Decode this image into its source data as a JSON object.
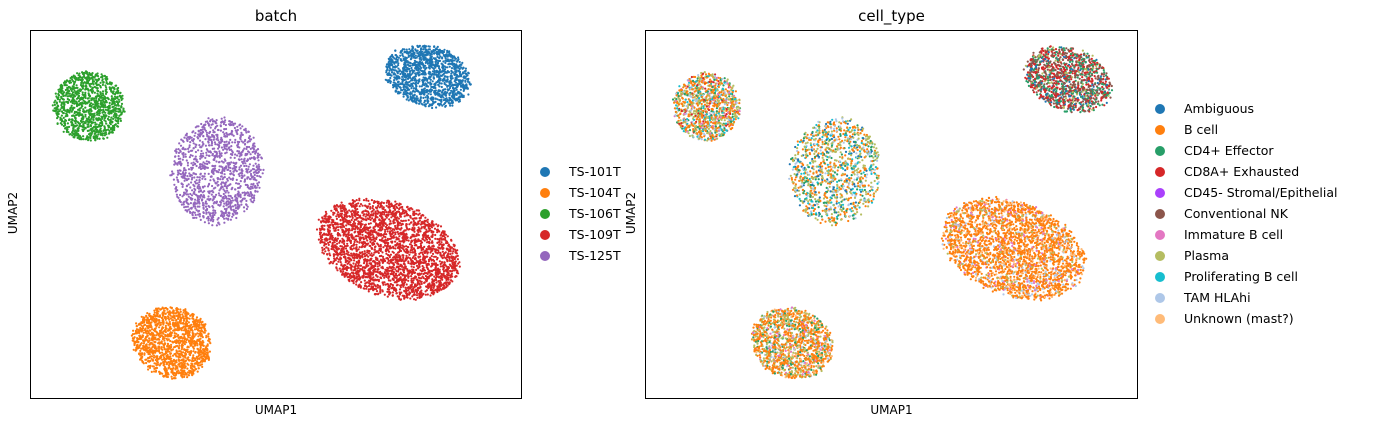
{
  "chart_data": [
    {
      "type": "scatter",
      "title": "batch",
      "xlabel": "UMAP1",
      "ylabel": "UMAP2",
      "ticks": "none",
      "grid": false,
      "legend_position": "right",
      "series": [
        {
          "name": "TS-101T",
          "color": "#1f77b4",
          "cluster": {
            "cx": 0.807,
            "cy": 0.878,
            "rx": 0.092,
            "ry": 0.085,
            "rot": 15,
            "count": 1300
          }
        },
        {
          "name": "TS-104T",
          "color": "#ff7f0e",
          "cluster": {
            "cx": 0.287,
            "cy": 0.156,
            "rx": 0.085,
            "ry": 0.098,
            "rot": 20,
            "count": 1400
          }
        },
        {
          "name": "TS-106T",
          "color": "#2ca02c",
          "cluster": {
            "cx": 0.117,
            "cy": 0.795,
            "rx": 0.075,
            "ry": 0.098,
            "rot": 15,
            "count": 1100
          }
        },
        {
          "name": "TS-109T",
          "color": "#d62728",
          "cluster": {
            "cx": 0.727,
            "cy": 0.41,
            "rx": 0.155,
            "ry": 0.13,
            "rot": 20,
            "count": 2800
          }
        },
        {
          "name": "TS-125T",
          "color": "#9467bd",
          "cluster": {
            "cx": 0.378,
            "cy": 0.62,
            "rx": 0.095,
            "ry": 0.15,
            "rot": 8,
            "count": 1200
          }
        }
      ]
    },
    {
      "type": "scatter",
      "title": "cell_type",
      "xlabel": "UMAP1",
      "ylabel": "UMAP2",
      "ticks": "none",
      "grid": false,
      "legend_position": "right",
      "series": [
        {
          "name": "Ambiguous",
          "color": "#1f77b4"
        },
        {
          "name": "B cell",
          "color": "#ff7f0e"
        },
        {
          "name": "CD4+ Effector",
          "color": "#279e68"
        },
        {
          "name": "CD8A+ Exhausted",
          "color": "#d62728"
        },
        {
          "name": "CD45- Stromal/Epithelial",
          "color": "#aa40fc"
        },
        {
          "name": "Conventional NK",
          "color": "#8c564b"
        },
        {
          "name": "Immature B cell",
          "color": "#e377c2"
        },
        {
          "name": "Plasma",
          "color": "#b5bd61"
        },
        {
          "name": "Proliferating B cell",
          "color": "#17becf"
        },
        {
          "name": "TAM HLAhi",
          "color": "#aec7e8"
        },
        {
          "name": "Unknown (mast?)",
          "color": "#ffbb78"
        }
      ],
      "clusters": [
        {
          "cx": 0.857,
          "cy": 0.869,
          "rx": 0.095,
          "ry": 0.087,
          "rot": 20,
          "count": 1300,
          "mix": [
            [
              "Conventional NK",
              0.3
            ],
            [
              "CD8A+ Exhausted",
              0.3
            ],
            [
              "CD4+ Effector",
              0.22
            ],
            [
              "Ambiguous",
              0.1
            ],
            [
              "Plasma",
              0.08
            ]
          ]
        },
        {
          "cx": 0.296,
          "cy": 0.154,
          "rx": 0.088,
          "ry": 0.098,
          "rot": 20,
          "count": 1400,
          "mix": [
            [
              "B cell",
              0.5
            ],
            [
              "Plasma",
              0.25
            ],
            [
              "CD4+ Effector",
              0.1
            ],
            [
              "Immature B cell",
              0.05
            ],
            [
              "TAM HLAhi",
              0.05
            ],
            [
              "Unknown (mast?)",
              0.05
            ]
          ]
        },
        {
          "cx": 0.123,
          "cy": 0.795,
          "rx": 0.07,
          "ry": 0.095,
          "rot": 15,
          "count": 1100,
          "mix": [
            [
              "B cell",
              0.35
            ],
            [
              "Plasma",
              0.25
            ],
            [
              "CD4+ Effector",
              0.1
            ],
            [
              "Proliferating B cell",
              0.1
            ],
            [
              "TAM HLAhi",
              0.08
            ],
            [
              "Immature B cell",
              0.06
            ],
            [
              "CD8A+ Exhausted",
              0.06
            ]
          ]
        },
        {
          "cx": 0.745,
          "cy": 0.41,
          "rx": 0.155,
          "ry": 0.13,
          "rot": 20,
          "count": 2800,
          "mix": [
            [
              "B cell",
              0.7
            ],
            [
              "Unknown (mast?)",
              0.1
            ],
            [
              "TAM HLAhi",
              0.08
            ],
            [
              "Immature B cell",
              0.06
            ],
            [
              "Plasma",
              0.06
            ]
          ]
        },
        {
          "cx": 0.384,
          "cy": 0.62,
          "rx": 0.095,
          "ry": 0.15,
          "rot": 8,
          "count": 1200,
          "mix": [
            [
              "Plasma",
              0.3
            ],
            [
              "B cell",
              0.3
            ],
            [
              "CD4+ Effector",
              0.12
            ],
            [
              "Proliferating B cell",
              0.1
            ],
            [
              "TAM HLAhi",
              0.1
            ],
            [
              "Ambiguous",
              0.08
            ]
          ]
        }
      ]
    }
  ]
}
